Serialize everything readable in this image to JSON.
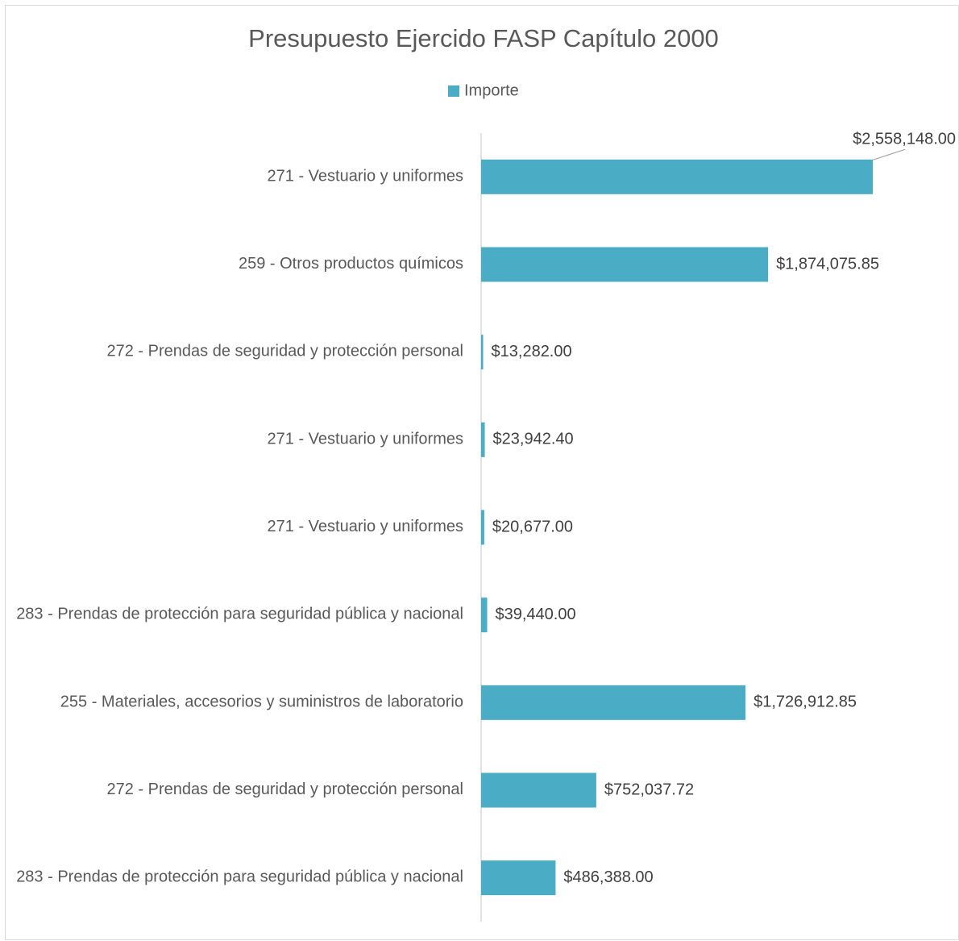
{
  "chart_data": {
    "type": "bar",
    "orientation": "horizontal",
    "title": "Presupuesto Ejercido FASP Capítulo 2000",
    "categories": [
      "271 - Vestuario y uniformes",
      "259 - Otros productos químicos",
      "272 - Prendas de seguridad y protección personal",
      "271 - Vestuario y uniformes",
      "271 - Vestuario y uniformes",
      "283 - Prendas de protección para seguridad pública y nacional",
      "255 - Materiales, accesorios y suministros de laboratorio",
      "272 - Prendas de seguridad y protección personal",
      "283 - Prendas de protección para seguridad pública y nacional"
    ],
    "series": [
      {
        "name": "Importe",
        "color": "#4bacc6",
        "values": [
          2558148,
          1874075.85,
          13282,
          23942.4,
          20677,
          39440,
          1726912.85,
          752037.72,
          486388
        ],
        "value_labels": [
          "$2,558,148.00",
          "$1,874,075.85",
          "$13,282.00",
          "$23,942.40",
          "$20,677.00",
          "$39,440.00",
          "$1,726,912.85",
          "$752,037.72",
          "$486,388.00"
        ]
      }
    ],
    "xlim": [
      0,
      3000000
    ],
    "legend": "top"
  }
}
